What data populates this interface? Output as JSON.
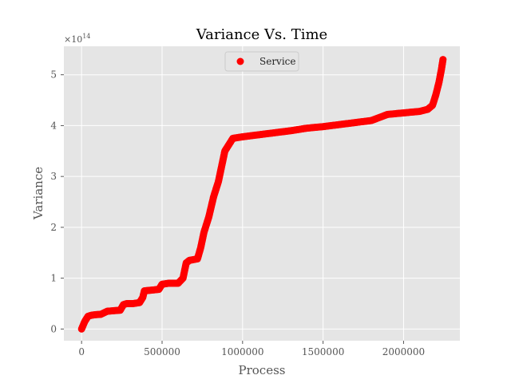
{
  "chart_data": {
    "type": "scatter",
    "title": "Variance Vs. Time",
    "xlabel": "Process",
    "ylabel": "Variance",
    "y_offset_text": "×10",
    "y_offset_exponent": "14",
    "xlim": [
      -110000,
      2350000
    ],
    "ylim": [
      -0.23,
      5.56
    ],
    "x_ticks": [
      0,
      500000,
      1000000,
      1500000,
      2000000
    ],
    "x_tick_labels": [
      "0",
      "500000",
      "1000000",
      "1500000",
      "2000000"
    ],
    "y_ticks": [
      0,
      1,
      2,
      3,
      4,
      5
    ],
    "y_tick_labels": [
      "0",
      "1",
      "2",
      "3",
      "4",
      "5"
    ],
    "grid": true,
    "legend_position": "top-center",
    "series": [
      {
        "name": "Service",
        "color": "#ff0000",
        "marker": "circle",
        "points": [
          [
            0,
            0.0
          ],
          [
            20000,
            0.15
          ],
          [
            40000,
            0.25
          ],
          [
            60000,
            0.27
          ],
          [
            80000,
            0.28
          ],
          [
            120000,
            0.29
          ],
          [
            140000,
            0.32
          ],
          [
            160000,
            0.35
          ],
          [
            200000,
            0.36
          ],
          [
            240000,
            0.37
          ],
          [
            260000,
            0.48
          ],
          [
            280000,
            0.5
          ],
          [
            320000,
            0.5
          ],
          [
            360000,
            0.52
          ],
          [
            380000,
            0.62
          ],
          [
            390000,
            0.75
          ],
          [
            420000,
            0.76
          ],
          [
            480000,
            0.78
          ],
          [
            500000,
            0.88
          ],
          [
            540000,
            0.9
          ],
          [
            600000,
            0.9
          ],
          [
            630000,
            1.0
          ],
          [
            650000,
            1.3
          ],
          [
            670000,
            1.35
          ],
          [
            720000,
            1.38
          ],
          [
            740000,
            1.6
          ],
          [
            760000,
            1.9
          ],
          [
            790000,
            2.2
          ],
          [
            820000,
            2.6
          ],
          [
            850000,
            2.9
          ],
          [
            870000,
            3.2
          ],
          [
            890000,
            3.5
          ],
          [
            910000,
            3.6
          ],
          [
            940000,
            3.75
          ],
          [
            1000000,
            3.78
          ],
          [
            1100000,
            3.82
          ],
          [
            1200000,
            3.86
          ],
          [
            1300000,
            3.9
          ],
          [
            1400000,
            3.95
          ],
          [
            1500000,
            3.98
          ],
          [
            1600000,
            4.02
          ],
          [
            1700000,
            4.06
          ],
          [
            1800000,
            4.1
          ],
          [
            1900000,
            4.22
          ],
          [
            2000000,
            4.25
          ],
          [
            2100000,
            4.28
          ],
          [
            2150000,
            4.32
          ],
          [
            2180000,
            4.4
          ],
          [
            2200000,
            4.6
          ],
          [
            2220000,
            4.85
          ],
          [
            2235000,
            5.1
          ],
          [
            2245000,
            5.3
          ]
        ]
      }
    ]
  }
}
